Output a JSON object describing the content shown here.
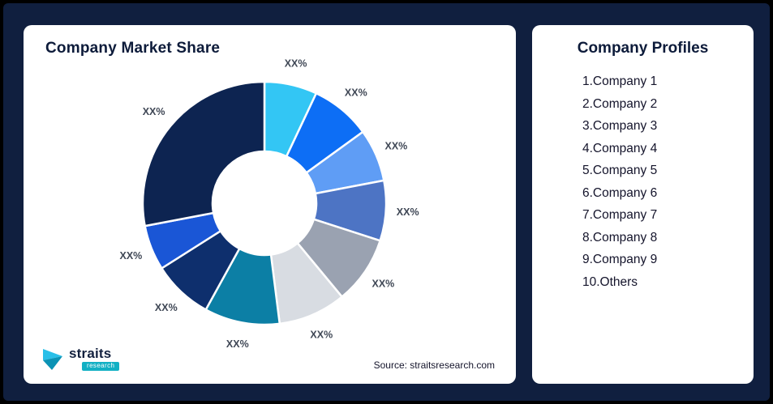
{
  "chart_card": {
    "title": "Company Market Share",
    "source": "Source: straitsresearch.com"
  },
  "logo": {
    "name": "straits",
    "sub": "research",
    "brand_colors": {
      "mark_light": "#29bfe8",
      "mark_dark": "#0b93b5",
      "sub_bg": "#12b0c4"
    }
  },
  "profiles_card": {
    "title": "Company Profiles",
    "items": [
      "1.Company 1",
      "2.Company 2",
      "3.Company 3",
      "4.Company 4",
      "5.Company 5",
      "6.Company 6",
      "7.Company 7",
      "8.Company 8",
      "9.Company 9",
      "10.Others"
    ]
  },
  "chart_data": {
    "type": "pie",
    "subtype": "donut",
    "title": "Company Market Share",
    "start_angle_deg": 0,
    "direction": "clockwise",
    "inner_radius_ratio": 0.43,
    "legend_position": "none",
    "segments": [
      {
        "name": "Company 1",
        "label": "XX%",
        "value": 7,
        "color": "#33c6f4"
      },
      {
        "name": "Company 2",
        "label": "XX%",
        "value": 8,
        "color": "#0d6ef5"
      },
      {
        "name": "Company 3",
        "label": "XX%",
        "value": 7,
        "color": "#5f9df5"
      },
      {
        "name": "Company 4",
        "label": "XX%",
        "value": 8,
        "color": "#4d74c4"
      },
      {
        "name": "Company 5",
        "label": "XX%",
        "value": 9,
        "color": "#9aa2b1"
      },
      {
        "name": "Company 6",
        "label": "XX%",
        "value": 9,
        "color": "#d8dce2"
      },
      {
        "name": "Company 7",
        "label": "XX%",
        "value": 10,
        "color": "#0c7fa5"
      },
      {
        "name": "Company 8",
        "label": "XX%",
        "value": 8,
        "color": "#0e2f6d"
      },
      {
        "name": "Company 9",
        "label": "XX%",
        "value": 6,
        "color": "#1a56d6"
      },
      {
        "name": "Others",
        "label": "XX%",
        "value": 28,
        "color": "#0d2451"
      }
    ]
  }
}
